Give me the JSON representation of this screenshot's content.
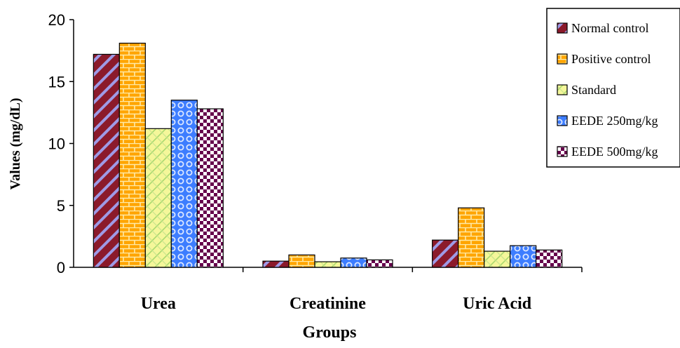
{
  "chart_data": {
    "type": "bar",
    "title": "",
    "xlabel": "Groups",
    "ylabel": "Values (mg/dL)",
    "ylim": [
      0,
      20
    ],
    "yticks": [
      0,
      5,
      10,
      15,
      20
    ],
    "grid": false,
    "legend_position": "top-right",
    "categories": [
      "Urea",
      "Creatinine",
      "Uric Acid"
    ],
    "series": [
      {
        "name": "Normal control",
        "values": [
          17.2,
          0.5,
          2.2
        ],
        "color": "#8B1A2B",
        "pattern": "diagonal-stripes"
      },
      {
        "name": "Positive control",
        "values": [
          18.1,
          1.0,
          4.8
        ],
        "color": "#FFA500",
        "pattern": "brick"
      },
      {
        "name": "Standard",
        "values": [
          11.2,
          0.45,
          1.3
        ],
        "color": "#EEF07A",
        "pattern": "diagonal-hatch"
      },
      {
        "name": "EEDE 250mg/kg",
        "values": [
          13.5,
          0.75,
          1.75
        ],
        "color": "#3D7DFF",
        "pattern": "circles"
      },
      {
        "name": "EEDE 500mg/kg",
        "values": [
          12.8,
          0.6,
          1.4
        ],
        "color": "#66004C",
        "pattern": "checker"
      }
    ]
  }
}
